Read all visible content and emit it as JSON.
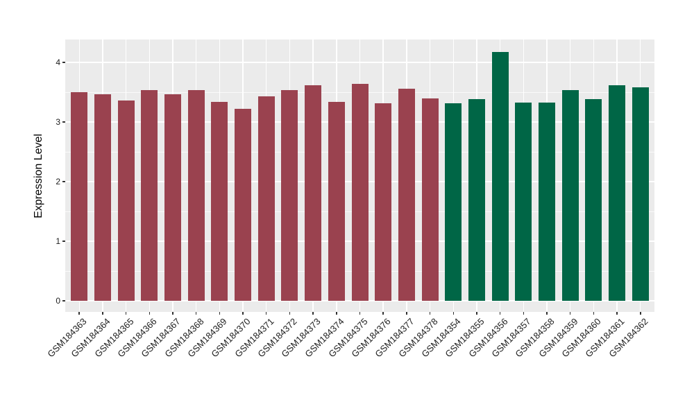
{
  "chart_data": {
    "type": "bar",
    "title": "",
    "xlabel": "",
    "ylabel": "Expression Level",
    "ylim": [
      0,
      4.38
    ],
    "yticks": [
      "0",
      "1",
      "2",
      "3",
      "4"
    ],
    "minor_grid_values": [
      0.5,
      1.5,
      2.5,
      3.5
    ],
    "grid": "on (white major + minor horizontal gridlines, white vertical gridline at each category, gray panel background)",
    "legend_position": "none",
    "categories": [
      "GSM184363",
      "GSM184364",
      "GSM184365",
      "GSM184366",
      "GSM184367",
      "GSM184368",
      "GSM184369",
      "GSM184370",
      "GSM184371",
      "GSM184372",
      "GSM184373",
      "GSM184374",
      "GSM184375",
      "GSM184376",
      "GSM184377",
      "GSM184378",
      "GSM184354",
      "GSM184355",
      "GSM184356",
      "GSM184357",
      "GSM184358",
      "GSM184359",
      "GSM184360",
      "GSM184361",
      "GSM184362"
    ],
    "values": [
      3.5,
      3.46,
      3.36,
      3.54,
      3.46,
      3.54,
      3.34,
      3.22,
      3.43,
      3.54,
      3.62,
      3.34,
      3.64,
      3.31,
      3.56,
      3.39,
      3.31,
      3.38,
      4.17,
      3.33,
      3.32,
      3.54,
      3.38,
      3.62,
      3.58
    ],
    "colors": [
      "#9A424F",
      "#9A424F",
      "#9A424F",
      "#9A424F",
      "#9A424F",
      "#9A424F",
      "#9A424F",
      "#9A424F",
      "#9A424F",
      "#9A424F",
      "#9A424F",
      "#9A424F",
      "#9A424F",
      "#9A424F",
      "#9A424F",
      "#9A424F",
      "#006646",
      "#006646",
      "#006646",
      "#006646",
      "#006646",
      "#006646",
      "#006646",
      "#006646",
      "#006646"
    ],
    "palette": {
      "group1_red": "#9A424F",
      "group2_green": "#006646",
      "panel_background": "#EBEBEB",
      "gridline": "#FFFFFF",
      "tick_text": "#1c1c1c",
      "axis_title_text": "#000000"
    }
  }
}
